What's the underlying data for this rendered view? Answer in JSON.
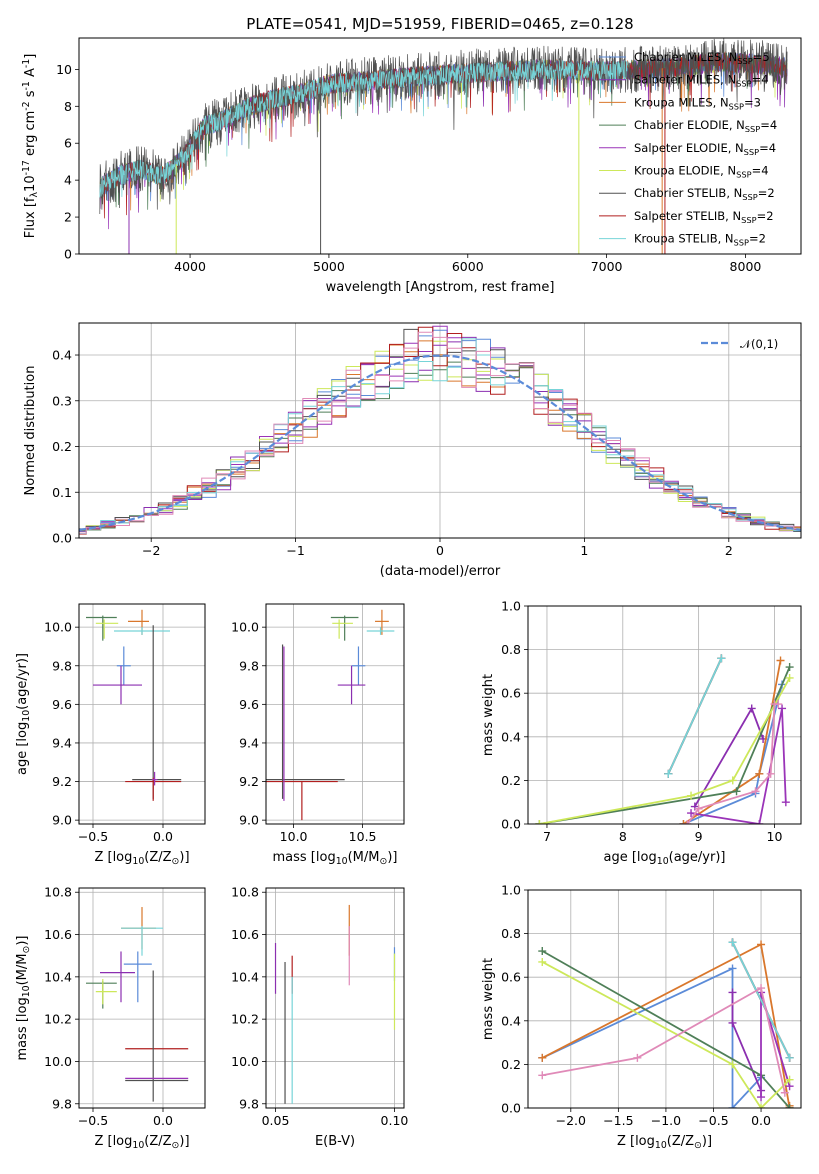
{
  "figure": {
    "title": "PLATE=0541, MJD=51959, FIBERID=0465, z=0.128"
  },
  "model_styles": [
    {
      "label": "Chabrier MILES, N$_{SSP}$=5",
      "color": "#5b8bd8"
    },
    {
      "label": "Salpeter MILES, N$_{SSP}$=4",
      "color": "#8b2fb0"
    },
    {
      "label": "Kroupa MILES, N$_{SSP}$=3",
      "color": "#d9772c"
    },
    {
      "label": "Chabrier ELODIE, N$_{SSP}$=4",
      "color": "#4f7f58"
    },
    {
      "label": "Salpeter ELODIE, N$_{SSP}$=4",
      "color": "#9a34b8"
    },
    {
      "label": "Kroupa ELODIE, N$_{SSP}$=4",
      "color": "#cde85a"
    },
    {
      "label": "Chabrier STELIB, N$_{SSP}$=2",
      "color": "#505050"
    },
    {
      "label": "Salpeter STELIB, N$_{SSP}$=2",
      "color": "#b11f1f"
    },
    {
      "label": "Kroupa STELIB, N$_{SSP}$=2",
      "color": "#77d4d8"
    }
  ],
  "chart_data": [
    {
      "id": "spectrum",
      "type": "line",
      "xlabel": "wavelength [Angstrom, rest frame]",
      "ylabel": "Flux [f$_\\lambda$10$^{-17}$ erg cm$^{-2}$ s$^{-1}$ A$^{-1}$]",
      "xlim": [
        3200,
        8400
      ],
      "ylim": [
        0,
        11.7
      ],
      "xticks": [
        4000,
        5000,
        6000,
        7000,
        8000
      ],
      "yticks": [
        0,
        2,
        4,
        6,
        8,
        10
      ],
      "legend_location": "right",
      "continuum": {
        "x": [
          3350,
          3500,
          3650,
          3800,
          3950,
          4100,
          4250,
          4400,
          4600,
          4800,
          5000,
          5300,
          5600,
          6000,
          6500,
          7000,
          7500,
          7800,
          8100,
          8300
        ],
        "y": [
          3.6,
          4.3,
          4.6,
          4.2,
          5.2,
          6.9,
          7.3,
          7.9,
          8.4,
          8.7,
          9.2,
          9.4,
          9.6,
          9.8,
          10.0,
          9.9,
          10.1,
          10.4,
          10.3,
          10.1
        ]
      },
      "dropouts": [
        {
          "model": 1,
          "x": 3560
        },
        {
          "model": 5,
          "x": 3900
        },
        {
          "model": 6,
          "x": 4940
        },
        {
          "model": 5,
          "x": 6800
        },
        {
          "model": 7,
          "x": 7420
        },
        {
          "model": 2,
          "x": 7400
        }
      ]
    },
    {
      "id": "residuals",
      "type": "histogram",
      "xlabel": "(data-model)/error",
      "ylabel": "Normed distribution",
      "xlim": [
        -2.5,
        2.5
      ],
      "ylim": [
        0,
        0.47
      ],
      "xticks": [
        -2,
        -1,
        0,
        1,
        2
      ],
      "yticks": [
        0.0,
        0.1,
        0.2,
        0.3,
        0.4
      ],
      "bin_width": 0.1,
      "reference_curve": {
        "label": "$\\mathcal{N}(0,1)$",
        "color": "#5b8bd8",
        "mean": 0,
        "sigma": 1
      },
      "legend_location": "top-right",
      "grid": true
    },
    {
      "id": "age_vs_Z",
      "type": "errorbar",
      "xlabel": "Z [log$_{10}$(Z/Z$_\\odot$)]",
      "ylabel": "age  [log$_{10}$(age/yr)]",
      "xlim": [
        -0.6,
        0.3
      ],
      "ylim": [
        8.98,
        10.12
      ],
      "xticks": [
        -0.5,
        0.0
      ],
      "yticks": [
        9.0,
        9.2,
        9.4,
        9.6,
        9.8,
        10.0
      ],
      "grid": true,
      "points": [
        {
          "model": 3,
          "x": -0.43,
          "y": 10.05,
          "xerr": [
            0.12,
            0.1
          ],
          "yerr": [
            0.12,
            0.01
          ]
        },
        {
          "model": 5,
          "x": -0.42,
          "y": 10.02,
          "xerr": [
            0.06,
            0.1
          ],
          "yerr": [
            0.08,
            0.02
          ]
        },
        {
          "model": 2,
          "x": -0.15,
          "y": 10.03,
          "xerr": [
            0.1,
            0.05
          ],
          "yerr": [
            0.07,
            0.06
          ]
        },
        {
          "model": 8,
          "x": -0.15,
          "y": 9.98,
          "xerr": [
            0.2,
            0.2
          ],
          "yerr": [
            0.02,
            0.02
          ]
        },
        {
          "model": 0,
          "x": -0.28,
          "y": 9.8,
          "xerr": [
            0.05,
            0.05
          ],
          "yerr": [
            0.1,
            0.1
          ]
        },
        {
          "model": 1,
          "x": -0.3,
          "y": 9.7,
          "xerr": [
            0.2,
            0.15
          ],
          "yerr": [
            0.1,
            0.1
          ]
        },
        {
          "model": 6,
          "x": -0.07,
          "y": 9.21,
          "xerr": [
            0.15,
            0.2
          ],
          "yerr": [
            0.1,
            0.8
          ]
        },
        {
          "model": 7,
          "x": -0.07,
          "y": 9.2,
          "xerr": [
            0.2,
            0.2
          ],
          "yerr": [
            0.1,
            0.02
          ]
        },
        {
          "model": 4,
          "x": -0.06,
          "y": 9.21,
          "xerr": [
            0.02,
            0.02
          ],
          "yerr": [
            0.03,
            0.04
          ]
        }
      ]
    },
    {
      "id": "age_vs_mass",
      "type": "errorbar",
      "xlabel": "mass [log$_{10}$(M/M$_\\odot$)]",
      "ylabel": "",
      "xlim": [
        9.8,
        10.8
      ],
      "ylim": [
        8.98,
        10.12
      ],
      "xticks": [
        10.0,
        10.5
      ],
      "yticks": [
        9.0,
        9.2,
        9.4,
        9.6,
        9.8,
        10.0
      ],
      "grid": true,
      "points": [
        {
          "model": 3,
          "x": 10.37,
          "y": 10.05,
          "xerr": [
            0.1,
            0.1
          ],
          "yerr": [
            0.12,
            0.01
          ]
        },
        {
          "model": 5,
          "x": 10.33,
          "y": 10.02,
          "xerr": [
            0.05,
            0.1
          ],
          "yerr": [
            0.08,
            0.02
          ]
        },
        {
          "model": 2,
          "x": 10.64,
          "y": 10.03,
          "xerr": [
            0.05,
            0.05
          ],
          "yerr": [
            0.07,
            0.06
          ]
        },
        {
          "model": 8,
          "x": 10.63,
          "y": 9.98,
          "xerr": [
            0.1,
            0.1
          ],
          "yerr": [
            0.02,
            0.02
          ]
        },
        {
          "model": 0,
          "x": 10.47,
          "y": 9.8,
          "xerr": [
            0.05,
            0.05
          ],
          "yerr": [
            0.1,
            0.1
          ]
        },
        {
          "model": 1,
          "x": 10.42,
          "y": 9.7,
          "xerr": [
            0.1,
            0.1
          ],
          "yerr": [
            0.1,
            0.1
          ]
        },
        {
          "model": 6,
          "x": 9.92,
          "y": 9.21,
          "xerr": [
            0.12,
            0.45
          ],
          "yerr": [
            0.1,
            0.7
          ]
        },
        {
          "model": 7,
          "x": 10.06,
          "y": 9.2,
          "xerr": [
            0.26,
            0.26
          ],
          "yerr": [
            0.2,
            0.0
          ]
        },
        {
          "model": 4,
          "x": 9.93,
          "y": 9.2,
          "xerr": [
            0.0,
            0.0
          ],
          "yerr": [
            0.1,
            0.7
          ]
        }
      ]
    },
    {
      "id": "weight_vs_age",
      "type": "line",
      "xlabel": "age  [log$_{10}$(age/yr)]",
      "ylabel": "mass weight",
      "xlim": [
        6.75,
        10.35
      ],
      "ylim": [
        0,
        1.0
      ],
      "xticks": [
        7,
        8,
        9,
        10
      ],
      "yticks": [
        0.0,
        0.2,
        0.4,
        0.6,
        0.8,
        1.0
      ],
      "grid": true,
      "series": [
        {
          "model": 0,
          "x": [
            8.8,
            9.75,
            9.8,
            10.1
          ],
          "y": [
            0.0,
            0.14,
            0.23,
            0.64
          ]
        },
        {
          "model": 1,
          "x": [
            8.95,
            9.7,
            9.85
          ],
          "y": [
            0.08,
            0.53,
            0.39
          ]
        },
        {
          "model": 2,
          "x": [
            8.8,
            9.8,
            10.08
          ],
          "y": [
            0.0,
            0.23,
            0.75
          ]
        },
        {
          "model": 3,
          "x": [
            6.9,
            9.5,
            10.2
          ],
          "y": [
            0.0,
            0.15,
            0.72
          ]
        },
        {
          "model": 4,
          "x": [
            8.9,
            9.8,
            10.1,
            10.15
          ],
          "y": [
            0.05,
            0.0,
            0.53,
            0.1
          ]
        },
        {
          "model": 5,
          "x": [
            6.9,
            8.9,
            9.45,
            10.2
          ],
          "y": [
            0.0,
            0.13,
            0.2,
            0.67
          ]
        },
        {
          "model": 6,
          "x": [
            8.6,
            9.3
          ],
          "y": [
            0.23,
            0.76
          ]
        },
        {
          "model": 7,
          "x": [
            8.6,
            9.3
          ],
          "y": [
            0.23,
            0.76
          ]
        },
        {
          "model": 8,
          "x": [
            8.6,
            9.3
          ],
          "y": [
            0.23,
            0.76
          ]
        },
        {
          "model": 9,
          "x": [
            8.85,
            9.0,
            9.75,
            9.95,
            10.0,
            10.05
          ],
          "y": [
            0.0,
            0.07,
            0.15,
            0.23,
            0.55,
            0.55
          ]
        }
      ]
    },
    {
      "id": "mass_vs_Z",
      "type": "errorbar",
      "xlabel": "Z [log$_{10}$(Z/Z$_\\odot$)]",
      "ylabel": "mass [log$_{10}$(M/M$_\\odot$)]",
      "xlim": [
        -0.6,
        0.3
      ],
      "ylim": [
        9.78,
        10.82
      ],
      "xticks": [
        -0.5,
        0.0
      ],
      "yticks": [
        9.8,
        10.0,
        10.2,
        10.4,
        10.6,
        10.8
      ],
      "grid": true,
      "points": [
        {
          "model": 2,
          "x": -0.15,
          "y": 10.63,
          "xerr": [
            0.15,
            0.1
          ],
          "yerr": [
            0.1,
            0.1
          ]
        },
        {
          "model": 8,
          "x": -0.15,
          "y": 10.63,
          "xerr": [
            0.15,
            0.15
          ],
          "yerr": [
            0.13,
            0.01
          ]
        },
        {
          "model": 0,
          "x": -0.18,
          "y": 10.46,
          "xerr": [
            0.1,
            0.1
          ],
          "yerr": [
            0.18,
            0.06
          ]
        },
        {
          "model": 1,
          "x": -0.3,
          "y": 10.42,
          "xerr": [
            0.15,
            0.1
          ],
          "yerr": [
            0.14,
            0.1
          ]
        },
        {
          "model": 3,
          "x": -0.43,
          "y": 10.37,
          "xerr": [
            0.12,
            0.1
          ],
          "yerr": [
            0.12,
            0.01
          ]
        },
        {
          "model": 5,
          "x": -0.43,
          "y": 10.33,
          "xerr": [
            0.05,
            0.1
          ],
          "yerr": [
            0.06,
            0.06
          ]
        },
        {
          "model": 7,
          "x": -0.07,
          "y": 10.06,
          "xerr": [
            0.2,
            0.25
          ],
          "yerr": [
            0.0,
            0.0
          ]
        },
        {
          "model": 6,
          "x": -0.07,
          "y": 9.91,
          "xerr": [
            0.2,
            0.25
          ],
          "yerr": [
            0.1,
            0.52
          ]
        },
        {
          "model": 4,
          "x": -0.07,
          "y": 9.92,
          "xerr": [
            0.2,
            0.25
          ],
          "yerr": [
            0.0,
            0.0
          ]
        }
      ]
    },
    {
      "id": "mass_vs_EBV",
      "type": "errorbar",
      "xlabel": "E(B-V)",
      "ylabel": "",
      "xlim": [
        0.046,
        0.104
      ],
      "ylim": [
        9.78,
        10.82
      ],
      "xticks": [
        0.05,
        0.1
      ],
      "yticks": [
        9.8,
        10.0,
        10.2,
        10.4,
        10.6,
        10.8
      ],
      "grid": true,
      "points": [
        {
          "model": 1,
          "x": 0.05,
          "y": 10.42,
          "xerr": [
            0,
            0
          ],
          "yerr": [
            0.1,
            0.14
          ]
        },
        {
          "model": 6,
          "x": 0.054,
          "y": 10.1,
          "xerr": [
            0,
            0
          ],
          "yerr": [
            0.3,
            0.37
          ]
        },
        {
          "model": 7,
          "x": 0.057,
          "y": 10.42,
          "xerr": [
            0,
            0
          ],
          "yerr": [
            0.1,
            0.08
          ]
        },
        {
          "model": 8,
          "x": 0.057,
          "y": 10.1,
          "xerr": [
            0,
            0
          ],
          "yerr": [
            0.3,
            0.3
          ]
        },
        {
          "model": 2,
          "x": 0.081,
          "y": 10.62,
          "xerr": [
            0,
            0
          ],
          "yerr": [
            0.12,
            0.12
          ]
        },
        {
          "model": 9,
          "x": 0.081,
          "y": 10.5,
          "xerr": [
            0,
            0
          ],
          "yerr": [
            0.14,
            0.14
          ]
        },
        {
          "model": 0,
          "x": 0.1,
          "y": 10.46,
          "xerr": [
            0,
            0
          ],
          "yerr": [
            0.08,
            0.08
          ]
        },
        {
          "model": 5,
          "x": 0.1,
          "y": 10.33,
          "xerr": [
            0,
            0
          ],
          "yerr": [
            0.18,
            0.18
          ]
        }
      ]
    },
    {
      "id": "weight_vs_Z",
      "type": "line",
      "xlabel": "Z [log$_{10}$(Z/Z$_\\odot$)]",
      "ylabel": "mass weight",
      "xlim": [
        -2.45,
        0.42
      ],
      "ylim": [
        0,
        1.0
      ],
      "xticks": [
        -2.0,
        -1.5,
        -1.0,
        -0.5,
        0.0
      ],
      "yticks": [
        0.0,
        0.2,
        0.4,
        0.6,
        0.8,
        1.0
      ],
      "grid": true,
      "series": [
        {
          "model": 0,
          "x": [
            -2.3,
            -0.3,
            -0.3,
            0.0
          ],
          "y": [
            0.23,
            0.64,
            0.0,
            0.14
          ]
        },
        {
          "model": 1,
          "x": [
            -0.3,
            -0.3,
            0.0
          ],
          "y": [
            0.53,
            0.39,
            0.08
          ]
        },
        {
          "model": 2,
          "x": [
            -2.3,
            0.0,
            0.3,
            0.3
          ],
          "y": [
            0.23,
            0.75,
            0.0,
            0.01
          ]
        },
        {
          "model": 3,
          "x": [
            -2.3,
            0.0,
            0.3
          ],
          "y": [
            0.72,
            0.15,
            0.0
          ]
        },
        {
          "model": 4,
          "x": [
            0.0,
            0.0,
            0.3
          ],
          "y": [
            0.05,
            0.53,
            0.1
          ]
        },
        {
          "model": 5,
          "x": [
            -2.3,
            -0.3,
            0.0,
            0.3
          ],
          "y": [
            0.67,
            0.2,
            0.0,
            0.13
          ]
        },
        {
          "model": 6,
          "x": [
            -0.3,
            0.3
          ],
          "y": [
            0.76,
            0.23
          ]
        },
        {
          "model": 7,
          "x": [
            -0.3,
            0.3
          ],
          "y": [
            0.76,
            0.23
          ]
        },
        {
          "model": 8,
          "x": [
            -0.3,
            0.3
          ],
          "y": [
            0.76,
            0.23
          ]
        },
        {
          "model": 9,
          "x": [
            -2.3,
            -1.3,
            0.0,
            0.25
          ],
          "y": [
            0.15,
            0.23,
            0.55,
            0.07
          ]
        }
      ]
    }
  ],
  "extra_colors": [
    "#e08ab8"
  ]
}
